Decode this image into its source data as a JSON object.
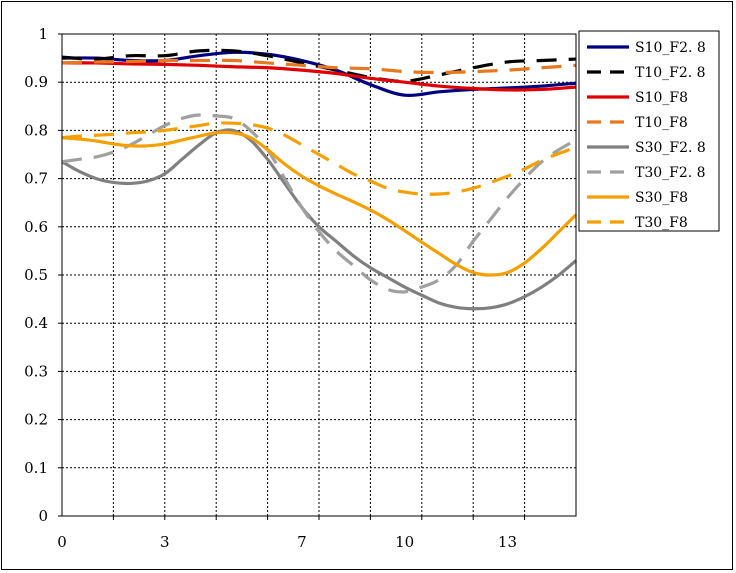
{
  "chart_data": {
    "type": "line",
    "title": "",
    "xlabel": "",
    "ylabel": "",
    "xlim": [
      0,
      15
    ],
    "ylim": [
      0,
      1
    ],
    "x_ticks": [
      0,
      3,
      7,
      10,
      13
    ],
    "x_tick_labels": [
      "0",
      "3",
      "7",
      "10",
      "13"
    ],
    "x_gridlines": [
      1.5,
      3,
      4.5,
      6,
      7.5,
      9,
      10.5,
      12,
      13.5
    ],
    "y_ticks": [
      0,
      0.1,
      0.2,
      0.3,
      0.4,
      0.5,
      0.6,
      0.7,
      0.8,
      0.9,
      1
    ],
    "y_tick_labels": [
      "0",
      "0.1",
      "0.2",
      "0.3",
      "0.4",
      "0.5",
      "0.6",
      "0.7",
      "0.8",
      "0.9",
      "1"
    ],
    "grid": true,
    "legend_position": "right",
    "series": [
      {
        "name": "S10_F2. 8",
        "color": "#000080",
        "dash": "solid",
        "x": [
          0,
          1,
          2,
          3,
          4,
          5,
          6,
          7,
          8,
          9,
          10,
          11,
          12,
          13,
          14,
          15
        ],
        "values": [
          0.95,
          0.95,
          0.945,
          0.945,
          0.955,
          0.962,
          0.958,
          0.945,
          0.925,
          0.895,
          0.873,
          0.88,
          0.885,
          0.888,
          0.892,
          0.898
        ]
      },
      {
        "name": "T10_F2. 8",
        "color": "#000000",
        "dash": "dash",
        "x": [
          0,
          1,
          2,
          3,
          4,
          5,
          6,
          7,
          8,
          9,
          10,
          11,
          12,
          13,
          14,
          15
        ],
        "values": [
          0.952,
          0.948,
          0.955,
          0.955,
          0.965,
          0.965,
          0.955,
          0.94,
          0.925,
          0.91,
          0.902,
          0.915,
          0.93,
          0.942,
          0.945,
          0.948
        ]
      },
      {
        "name": "S10_F8",
        "color": "#e00000",
        "dash": "solid",
        "x": [
          0,
          1,
          2,
          3,
          4,
          5,
          6,
          7,
          8,
          9,
          10,
          11,
          12,
          13,
          14,
          15
        ],
        "values": [
          0.94,
          0.94,
          0.938,
          0.937,
          0.935,
          0.932,
          0.93,
          0.925,
          0.918,
          0.908,
          0.9,
          0.892,
          0.887,
          0.884,
          0.885,
          0.89
        ]
      },
      {
        "name": "T10_F8",
        "color": "#e87820",
        "dash": "dash",
        "x": [
          0,
          1,
          2,
          3,
          4,
          5,
          6,
          7,
          8,
          9,
          10,
          11,
          12,
          13,
          14,
          15
        ],
        "values": [
          0.94,
          0.942,
          0.943,
          0.945,
          0.945,
          0.945,
          0.94,
          0.935,
          0.93,
          0.928,
          0.922,
          0.92,
          0.922,
          0.925,
          0.93,
          0.935
        ]
      },
      {
        "name": "S30_F2. 8",
        "color": "#808080",
        "dash": "solid",
        "x": [
          0,
          0.5,
          1,
          1.5,
          2,
          2.5,
          3,
          3.5,
          4,
          4.5,
          5,
          5.5,
          6,
          6.5,
          7,
          7.5,
          8,
          8.5,
          9,
          9.5,
          10,
          10.5,
          11,
          11.5,
          12,
          12.5,
          13,
          13.5,
          14,
          14.5,
          15
        ],
        "values": [
          0.735,
          0.715,
          0.7,
          0.692,
          0.69,
          0.695,
          0.71,
          0.74,
          0.77,
          0.795,
          0.8,
          0.78,
          0.74,
          0.69,
          0.64,
          0.6,
          0.57,
          0.54,
          0.515,
          0.495,
          0.475,
          0.458,
          0.442,
          0.433,
          0.43,
          0.432,
          0.44,
          0.455,
          0.475,
          0.5,
          0.53
        ]
      },
      {
        "name": "T30_F2. 8",
        "color": "#a0a0a0",
        "dash": "dash",
        "x": [
          0,
          0.5,
          1,
          1.5,
          2,
          2.5,
          3,
          3.5,
          4,
          4.5,
          5,
          5.5,
          6,
          6.5,
          7,
          7.5,
          8,
          8.5,
          9,
          9.5,
          10,
          10.5,
          11,
          11.5,
          12,
          12.5,
          13,
          13.5,
          14,
          14.5,
          15
        ],
        "values": [
          0.735,
          0.74,
          0.745,
          0.755,
          0.77,
          0.79,
          0.81,
          0.825,
          0.832,
          0.83,
          0.825,
          0.8,
          0.76,
          0.7,
          0.64,
          0.59,
          0.55,
          0.52,
          0.49,
          0.47,
          0.465,
          0.475,
          0.49,
          0.52,
          0.57,
          0.615,
          0.66,
          0.7,
          0.735,
          0.76,
          0.78
        ]
      },
      {
        "name": "S30_F8",
        "color": "#f5a000",
        "dash": "solid",
        "x": [
          0,
          0.5,
          1,
          1.5,
          2,
          2.5,
          3,
          3.5,
          4,
          4.5,
          5,
          5.5,
          6,
          6.5,
          7,
          7.5,
          8,
          8.5,
          9,
          9.5,
          10,
          10.5,
          11,
          11.5,
          12,
          12.5,
          13,
          13.5,
          14,
          14.5,
          15
        ],
        "values": [
          0.785,
          0.782,
          0.778,
          0.772,
          0.768,
          0.768,
          0.772,
          0.78,
          0.788,
          0.795,
          0.795,
          0.785,
          0.76,
          0.73,
          0.705,
          0.685,
          0.668,
          0.652,
          0.635,
          0.615,
          0.592,
          0.568,
          0.545,
          0.522,
          0.505,
          0.5,
          0.505,
          0.525,
          0.555,
          0.59,
          0.625
        ]
      },
      {
        "name": "T30_F8",
        "color": "#f5a000",
        "dash": "dash",
        "x": [
          0,
          0.5,
          1,
          1.5,
          2,
          2.5,
          3,
          3.5,
          4,
          4.5,
          5,
          5.5,
          6,
          6.5,
          7,
          7.5,
          8,
          8.5,
          9,
          9.5,
          10,
          10.5,
          11,
          11.5,
          12,
          12.5,
          13,
          13.5,
          14,
          14.5,
          15
        ],
        "values": [
          0.785,
          0.788,
          0.79,
          0.792,
          0.795,
          0.797,
          0.8,
          0.805,
          0.81,
          0.815,
          0.815,
          0.812,
          0.805,
          0.79,
          0.77,
          0.75,
          0.73,
          0.71,
          0.695,
          0.68,
          0.672,
          0.668,
          0.668,
          0.672,
          0.68,
          0.692,
          0.705,
          0.72,
          0.738,
          0.752,
          0.765
        ]
      }
    ]
  }
}
